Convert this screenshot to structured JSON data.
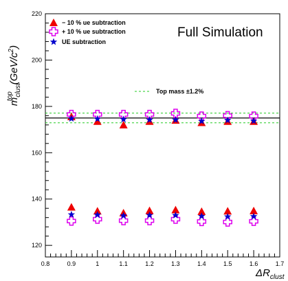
{
  "chart_data": {
    "type": "scatter",
    "title": "Full Simulation",
    "ylabel": {
      "main": "m",
      "sub": "clust",
      "sup": "top",
      "unit": "(GeV/c",
      "unit_sup": "2",
      "unit_close": ")"
    },
    "xlabel": {
      "main": "ΔR",
      "sub": "clust"
    },
    "xlim": [
      0.8,
      1.7
    ],
    "ylim": [
      115,
      220
    ],
    "xticks": [
      "0.8",
      "0.9",
      "1",
      "1.1",
      "1.2",
      "1.3",
      "1.4",
      "1.5",
      "1.6",
      "1.7"
    ],
    "yticks": [
      "120",
      "140",
      "160",
      "180",
      "200",
      "220"
    ],
    "grid": false,
    "legend_position": "top-left",
    "series": [
      {
        "name": "− 10 % ue subtraction",
        "marker": "triangle",
        "color": "#ee0000",
        "x": [
          0.9,
          1.0,
          1.1,
          1.2,
          1.3,
          1.4,
          1.5,
          1.6,
          0.9,
          1.0,
          1.1,
          1.2,
          1.3,
          1.4,
          1.5,
          1.6
        ],
        "y": [
          175.5,
          173.5,
          172,
          173.5,
          174,
          173,
          173.5,
          173.5,
          136.5,
          134.8,
          134,
          135,
          135.3,
          134.6,
          134.8,
          134.9
        ]
      },
      {
        "name": "+ 10 % ue subtraction",
        "marker": "open-cross",
        "color": "#dd00ee",
        "x": [
          0.9,
          1.0,
          1.1,
          1.2,
          1.3,
          1.4,
          1.5,
          1.6,
          0.9,
          1.0,
          1.1,
          1.2,
          1.3,
          1.4,
          1.5,
          1.6
        ],
        "y": [
          176.5,
          176.5,
          176.5,
          176.5,
          177,
          175.8,
          176,
          175.8,
          130.5,
          131.3,
          130.7,
          130.7,
          131.3,
          130.3,
          130.1,
          130.4
        ]
      },
      {
        "name": "UE subtraction",
        "marker": "star",
        "color": "#0000cc",
        "x": [
          0.9,
          1.0,
          1.1,
          1.2,
          1.3,
          1.4,
          1.5,
          1.6,
          0.9,
          1.0,
          1.1,
          1.2,
          1.3,
          1.4,
          1.5,
          1.6
        ],
        "y": [
          174.7,
          174.6,
          174.4,
          174.2,
          174.2,
          173.6,
          174,
          173.7,
          133.3,
          133.2,
          132.8,
          133,
          133,
          132.6,
          132.4,
          132.5
        ]
      }
    ],
    "reference": {
      "label": "Top mass ±1.2%",
      "center": 175,
      "band": [
        172.9,
        177.1
      ],
      "center_color": "#000000",
      "band_color": "#22cc22"
    }
  }
}
